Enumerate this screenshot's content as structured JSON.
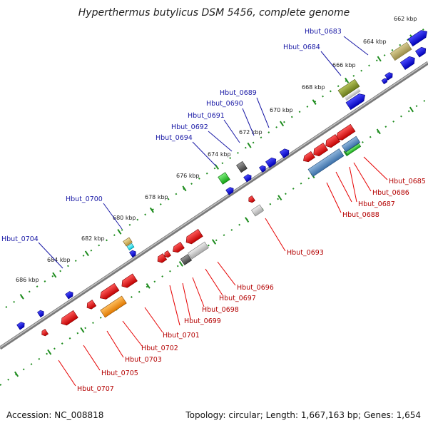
{
  "title": "Hyperthermus butylicus DSM 5456, complete genome",
  "accession": "Accession: NC_008818",
  "summary": "Topology: circular; Length: 1,667,163 bp; Genes: 1,654",
  "kbp_labels": [
    "662 kbp",
    "664 kbp",
    "666 kbp",
    "668 kbp",
    "670 kbp",
    "672 kbp",
    "674 kbp",
    "676 kbp",
    "678 kbp",
    "680 kbp",
    "682 kbp",
    "684 kbp",
    "686 kbp"
  ],
  "genes_top": [
    "Hbut_0683",
    "Hbut_0684",
    "Hbut_0689",
    "Hbut_0690",
    "Hbut_0691",
    "Hbut_0692",
    "Hbut_0694",
    "Hbut_0700",
    "Hbut_0704"
  ],
  "genes_bottom": [
    "Hbut_0685",
    "Hbut_0686",
    "Hbut_0687",
    "Hbut_0688",
    "Hbut_0693",
    "Hbut_0696",
    "Hbut_0697",
    "Hbut_0698",
    "Hbut_0699",
    "Hbut_0701",
    "Hbut_0702",
    "Hbut_0703",
    "Hbut_0705",
    "Hbut_0707"
  ],
  "colors": {
    "forward_strand": "#0a0ae6",
    "reverse_strand": "#e60a0a",
    "backbone": "#8c8c8c",
    "tick": "#1e8c1e",
    "label_top": "#1a1aa6",
    "label_bottom": "#b40000"
  }
}
